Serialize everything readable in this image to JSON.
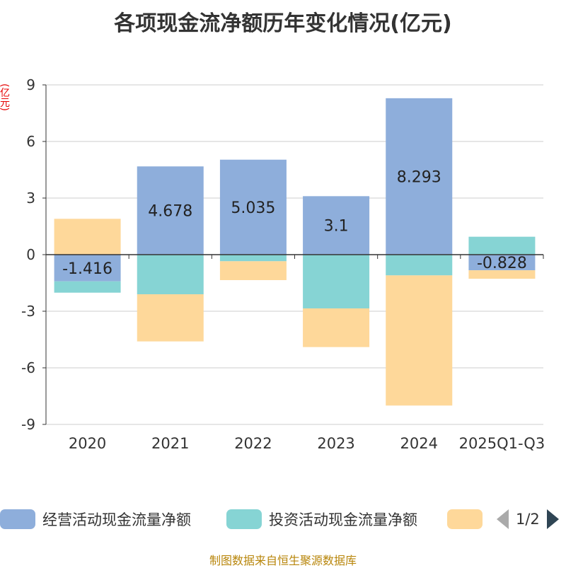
{
  "title": "各项现金流净额历年变化情况(亿元)",
  "unit_label": "(亿元)",
  "source": "制图数据来自恒生聚源数据库",
  "legend": {
    "items": [
      {
        "label": "经营活动现金流量净额",
        "color": "#8eaedb"
      },
      {
        "label": "投资活动现金流量净额",
        "color": "#86d4d4"
      },
      {
        "label": "",
        "color": "#fed89a"
      }
    ],
    "page_indicator": "1/2"
  },
  "chart_data": {
    "type": "bar",
    "stacked": true,
    "title": "各项现金流净额历年变化情况(亿元)",
    "ylabel": "(亿元)",
    "categories": [
      "2020",
      "2021",
      "2022",
      "2023",
      "2024",
      "2025Q1-Q3"
    ],
    "ylim": [
      -9,
      9
    ],
    "yticks": [
      -9,
      -6,
      -3,
      0,
      3,
      6,
      9
    ],
    "ytick_labels": [
      "-9",
      "-6",
      "-3",
      "0",
      "3",
      "6",
      "9"
    ],
    "series": [
      {
        "name": "经营活动现金流量净额",
        "color": "#8eaedb",
        "values": [
          -1.416,
          4.678,
          5.035,
          3.1,
          8.293,
          -0.828
        ],
        "labels": [
          "-1.416",
          "4.678",
          "5.035",
          "3.1",
          "8.293",
          "-0.828"
        ]
      },
      {
        "name": "投资活动现金流量净额",
        "color": "#86d4d4",
        "values": [
          -0.6,
          -2.1,
          -0.35,
          -2.85,
          -1.1,
          0.95
        ]
      },
      {
        "name": "",
        "color": "#fed89a",
        "values": [
          1.9,
          -2.5,
          -1.0,
          -2.05,
          -6.9,
          -0.45
        ]
      }
    ]
  }
}
